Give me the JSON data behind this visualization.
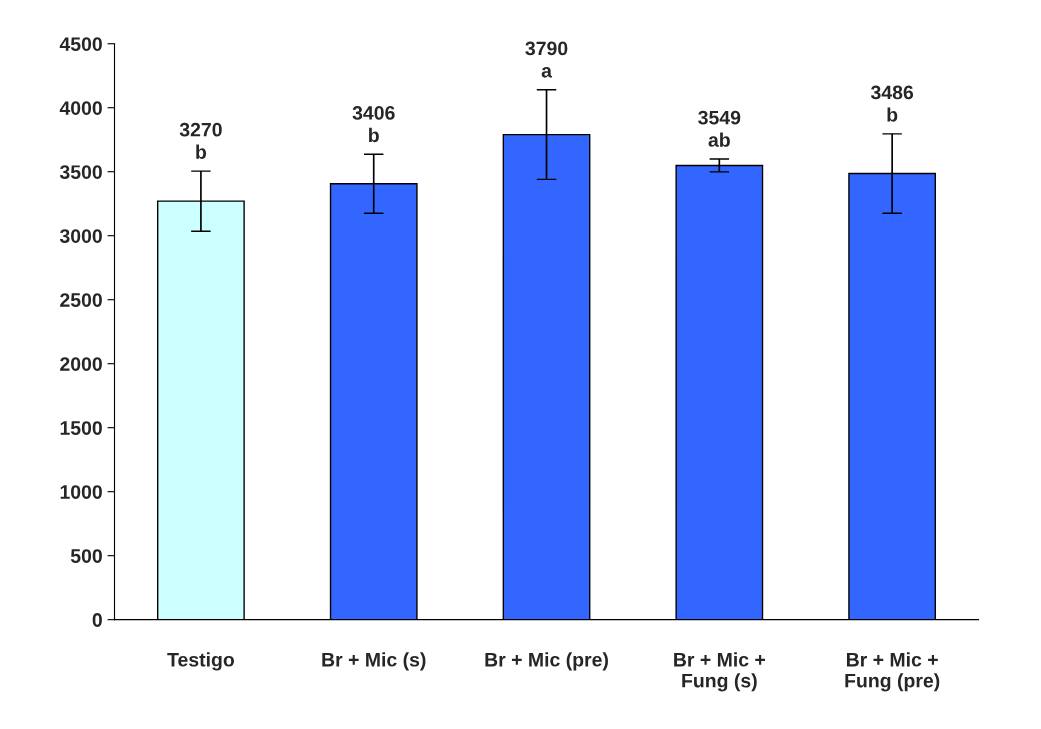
{
  "chart_data": {
    "type": "bar",
    "categories": [
      "Testigo",
      "Br + Mic (s)",
      "Br + Mic (pre)",
      "Br + Mic +\nFung (s)",
      "Br + Mic +\nFung (pre)"
    ],
    "values": [
      3270,
      3406,
      3790,
      3549,
      3486
    ],
    "colors": [
      "#ccffff",
      "#3366ff",
      "#3366ff",
      "#3366ff",
      "#3366ff"
    ],
    "errors": [
      235,
      230,
      350,
      50,
      310
    ],
    "value_labels": [
      "3270\nb",
      "3406\nb",
      "3790\na",
      "3549\nab",
      "3486\nb"
    ],
    "ylim": [
      0,
      4500
    ],
    "yticks": [
      0,
      500,
      1000,
      1500,
      2000,
      2500,
      3000,
      3500,
      4000,
      4500
    ],
    "grid": false,
    "legend": false
  }
}
